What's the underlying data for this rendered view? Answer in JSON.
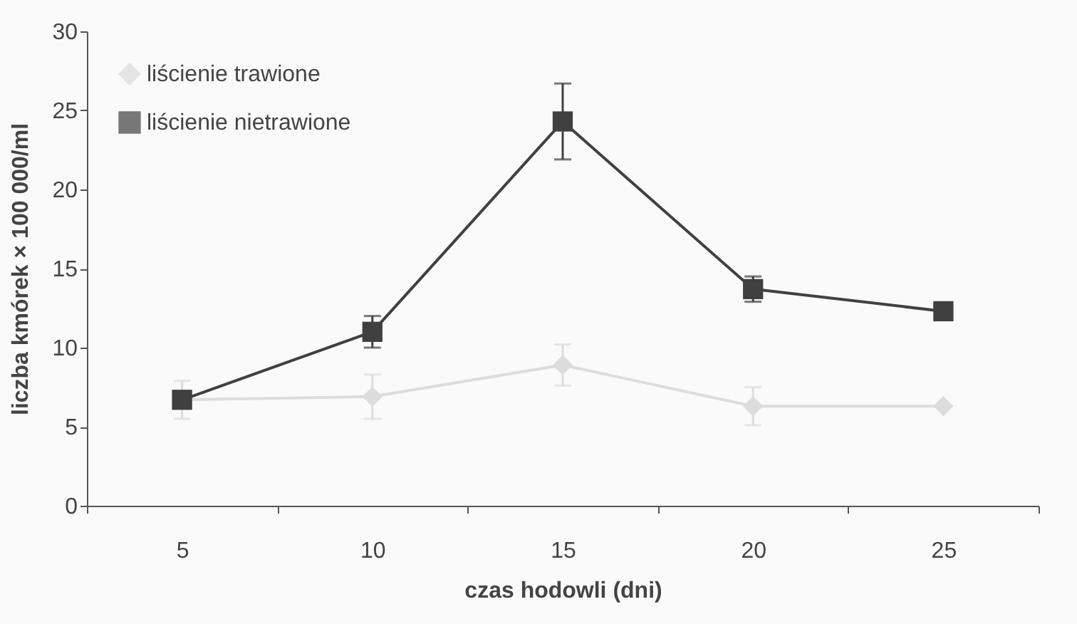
{
  "chart_data": {
    "type": "line",
    "xlabel": "czas hodowli (dni)",
    "ylabel": "liczba kmórek × 100 000/ml",
    "categories": [
      "5",
      "10",
      "15",
      "20",
      "25"
    ],
    "ylim": [
      0,
      30
    ],
    "yticks": [
      0,
      5,
      10,
      15,
      20,
      25,
      30
    ],
    "grid": false,
    "legend": "top left",
    "line_style": "solid",
    "series": [
      {
        "name": "liścienie trawione",
        "color": "#dcdcdc",
        "marker": "diamond",
        "values": [
          6.7,
          6.9,
          8.9,
          6.3,
          6.3
        ],
        "errors": [
          1.2,
          1.4,
          1.3,
          1.2,
          null
        ]
      },
      {
        "name": "liścienie nietrawione",
        "color": "#404040",
        "marker": "square",
        "values": [
          6.7,
          11.0,
          24.3,
          13.7,
          12.3
        ],
        "errors": [
          null,
          1.0,
          2.4,
          0.8,
          null
        ]
      }
    ]
  }
}
